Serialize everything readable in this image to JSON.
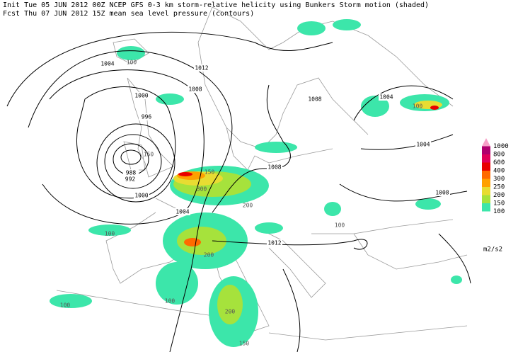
{
  "header": {
    "line1": "Init  Tue 05 JUN 2012 00Z  NCEP GFS 0-3 km storm-relative helicity using Bunkers Storm motion (shaded)",
    "line2": "Fcst Thu 07 JUN 2012 15Z  mean sea level pressure (contours)"
  },
  "contour_labels": [
    "1004",
    "1012",
    "1008",
    "1000",
    "996",
    "988",
    "992",
    "1000",
    "1004",
    "1008",
    "1008",
    "1004",
    "1004",
    "1008",
    "1012"
  ],
  "shade_labels": [
    "100",
    "150",
    "300",
    "200",
    "100",
    "200",
    "100",
    "200",
    "150",
    "100",
    "100",
    "150",
    "100"
  ],
  "legend": {
    "levels": [
      {
        "label": "1000",
        "color": "#f7a0c8"
      },
      {
        "label": "800",
        "color": "#b0006e"
      },
      {
        "label": "600",
        "color": "#e0005a"
      },
      {
        "label": "400",
        "color": "#e80000"
      },
      {
        "label": "300",
        "color": "#ff6a00"
      },
      {
        "label": "250",
        "color": "#ffa000"
      },
      {
        "label": "200",
        "color": "#e8dc32"
      },
      {
        "label": "150",
        "color": "#a6e23c"
      },
      {
        "label": "100",
        "color": "#3ce6aa"
      }
    ],
    "unit": "m2/s2"
  }
}
